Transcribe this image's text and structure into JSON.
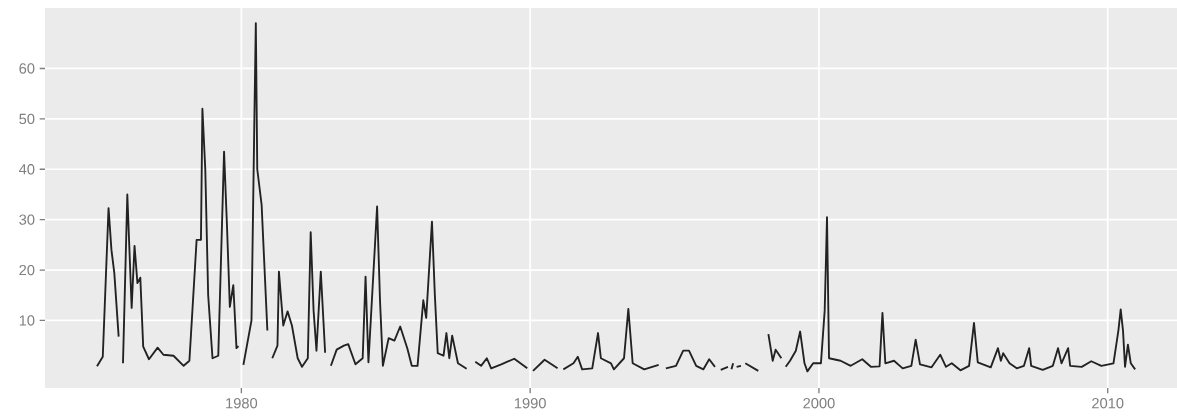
{
  "chart_data": {
    "type": "line",
    "xlim": [
      1973.2,
      2012.4
    ],
    "ylim": [
      -3.4,
      72
    ],
    "xticks": [
      1980,
      1990,
      2000,
      2010
    ],
    "yticks": [
      10,
      20,
      30,
      40,
      50,
      60
    ],
    "grid": true,
    "marker": "none",
    "line_style": "solid",
    "series": [
      {
        "color": "#222222",
        "x": [
          1975.0,
          1975.2,
          1975.4,
          1975.5,
          1975.6,
          1975.75,
          1975.82,
          1975.9,
          1976.05,
          1976.2,
          1976.3,
          1976.4,
          1976.5,
          1976.6,
          1976.8,
          1977.1,
          1977.3,
          1977.65,
          1978.0,
          1978.2,
          1978.45,
          1978.6,
          1978.65,
          1978.75,
          1978.85,
          1979.0,
          1979.2,
          1979.4,
          1979.5,
          1979.6,
          1979.72,
          1979.83,
          1979.9,
          1979.98,
          1980.07,
          1980.35,
          1980.45,
          1980.5,
          1980.55,
          1980.7,
          1980.9,
          1980.98,
          1981.07,
          1981.25,
          1981.3,
          1981.45,
          1981.6,
          1981.75,
          1981.95,
          1982.1,
          1982.3,
          1982.4,
          1982.5,
          1982.6,
          1982.75,
          1982.9,
          1983.0,
          1983.1,
          1983.3,
          1983.55,
          1983.7,
          1983.95,
          1984.2,
          1984.3,
          1984.4,
          1984.7,
          1984.8,
          1984.9,
          1985.1,
          1985.3,
          1985.5,
          1985.75,
          1985.9,
          1986.1,
          1986.3,
          1986.4,
          1986.6,
          1986.7,
          1986.8,
          1987.0,
          1987.1,
          1987.2,
          1987.3,
          1987.5,
          1987.8,
          1987.95,
          1988.1,
          1988.3,
          1988.5,
          1988.65,
          1989.0,
          1989.45,
          1989.9,
          1990.0,
          1990.1,
          1990.5,
          1990.95,
          1991.05,
          1991.15,
          1991.5,
          1991.65,
          1991.8,
          1992.15,
          1992.35,
          1992.45,
          1992.8,
          1992.9,
          1993.25,
          1993.4,
          1993.55,
          1993.95,
          1994.45,
          1994.58,
          1994.7,
          1995.05,
          1995.3,
          1995.5,
          1995.75,
          1996.0,
          1996.2,
          1996.4,
          1996.5,
          1996.6,
          1996.85,
          1996.92,
          1996.97,
          1997.03,
          1997.08,
          1997.15,
          1997.3,
          1997.37,
          1997.45,
          1997.9,
          1998.1,
          1998.25,
          1998.4,
          1998.5,
          1998.7,
          1998.78,
          1998.85,
          1999.0,
          1999.2,
          1999.35,
          1999.5,
          1999.6,
          1999.8,
          2000.07,
          2000.2,
          2000.28,
          2000.35,
          2000.75,
          2001.1,
          2001.5,
          2001.8,
          2002.1,
          2002.2,
          2002.3,
          2002.6,
          2002.9,
          2003.2,
          2003.35,
          2003.5,
          2003.9,
          2004.2,
          2004.4,
          2004.6,
          2004.9,
          2005.2,
          2005.37,
          2005.5,
          2005.95,
          2006.2,
          2006.3,
          2006.38,
          2006.6,
          2006.85,
          2007.1,
          2007.28,
          2007.35,
          2007.75,
          2008.1,
          2008.28,
          2008.4,
          2008.63,
          2008.7,
          2009.1,
          2009.43,
          2009.78,
          2010.2,
          2010.37,
          2010.45,
          2010.53,
          2010.6,
          2010.7,
          2010.8,
          2010.95
        ],
        "values": [
          0.9,
          2.8,
          32.3,
          24,
          19.4,
          6.8,
          null,
          1.5,
          35,
          12.5,
          24.8,
          17.4,
          18.5,
          4.8,
          2.3,
          4.6,
          3.2,
          3,
          1,
          2,
          26,
          26,
          52,
          40,
          15,
          2.5,
          3,
          43.5,
          29,
          12.7,
          17,
          4.5,
          4.9,
          null,
          1.2,
          10,
          50,
          69,
          40,
          33,
          8,
          null,
          2.5,
          5,
          19.7,
          9,
          11.8,
          9,
          2.5,
          0.8,
          2.5,
          27.5,
          12,
          4,
          19.7,
          3.6,
          null,
          1,
          4.2,
          5,
          5.3,
          1.3,
          2.5,
          18.7,
          1.7,
          32.6,
          14,
          1,
          6.5,
          6,
          8.8,
          4.4,
          1,
          1,
          14,
          10.5,
          29.6,
          15,
          3.5,
          3,
          7.5,
          2.5,
          7,
          1.5,
          0.4,
          null,
          1.8,
          1,
          2.5,
          0.5,
          1.3,
          2.4,
          0.5,
          null,
          0,
          2.2,
          0.5,
          null,
          0.3,
          1.5,
          2.8,
          0.3,
          0.5,
          7.5,
          2.5,
          1.5,
          0.3,
          2.5,
          12.3,
          1.5,
          0.3,
          1.2,
          null,
          0.5,
          1,
          4,
          4,
          1,
          0.3,
          2.3,
          0.8,
          null,
          0.2,
          0.8,
          null,
          0.3,
          1.5,
          null,
          0.8,
          1.0,
          null,
          1.5,
          0,
          null,
          7.3,
          2,
          4.2,
          2.5,
          null,
          0.8,
          2,
          4,
          7.8,
          1.5,
          -0.1,
          1.5,
          1.5,
          12,
          30.5,
          2.5,
          2,
          1,
          2.3,
          0.8,
          0.9,
          11.5,
          1.5,
          2,
          0.5,
          1,
          6.2,
          1.3,
          0.7,
          3.2,
          0.8,
          1.5,
          0.1,
          1,
          9.5,
          1.7,
          0.7,
          4.5,
          2,
          3.5,
          1.5,
          0.5,
          1,
          4.5,
          1,
          0.2,
          1,
          4.5,
          1.5,
          4.5,
          1,
          0.8,
          1.9,
          1,
          1.5,
          8,
          12.2,
          8,
          0.8,
          5.2,
          1.5,
          0.3
        ]
      }
    ]
  }
}
